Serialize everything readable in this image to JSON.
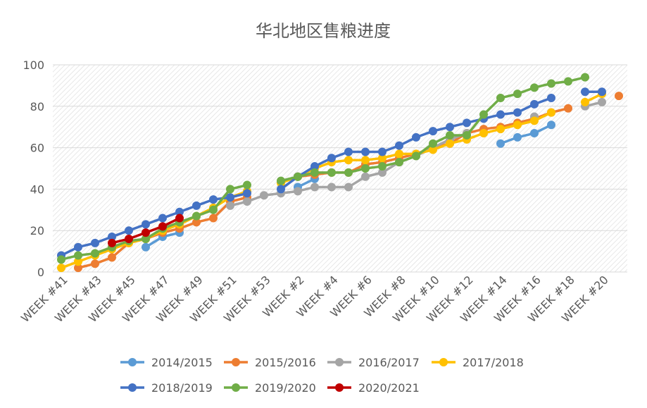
{
  "chart_data": {
    "type": "line",
    "title": "华北地区售粮进度",
    "xlabel": "",
    "ylabel": "",
    "ylim": [
      0,
      100
    ],
    "yticks": [
      0,
      20,
      40,
      60,
      80,
      100
    ],
    "grid": true,
    "background": "hatched",
    "legend_position": "bottom",
    "categories": [
      "WEEK #41",
      "WEEK #42",
      "WEEK #43",
      "WEEK #44",
      "WEEK #45",
      "WEEK #46",
      "WEEK #47",
      "WEEK #48",
      "WEEK #49",
      "WEEK #50",
      "WEEK #51",
      "WEEK #52",
      "WEEK #53",
      "WEEK #1",
      "WEEK #2",
      "WEEK #3",
      "WEEK #4",
      "WEEK #5",
      "WEEK #6",
      "WEEK #7",
      "WEEK #8",
      "WEEK #9",
      "WEEK #10",
      "WEEK #11",
      "WEEK #12",
      "WEEK #13",
      "WEEK #14",
      "WEEK #15",
      "WEEK #16",
      "WEEK #17",
      "WEEK #18",
      "WEEK #19",
      "WEEK #20",
      "WEEK #21"
    ],
    "tick_labels": [
      "WEEK #41",
      "WEEK #43",
      "WEEK #45",
      "WEEK #47",
      "WEEK #49",
      "WEEK #51",
      "WEEK #53",
      "WEEK #2",
      "WEEK #4",
      "WEEK #6",
      "WEEK #8",
      "WEEK #10",
      "WEEK #12",
      "WEEK #14",
      "WEEK #16",
      "WEEK #18",
      "WEEK #20"
    ],
    "series": [
      {
        "name": "2014/2015",
        "color": "#5B9BD5",
        "values": [
          null,
          null,
          null,
          null,
          null,
          12,
          17,
          19,
          null,
          null,
          null,
          null,
          null,
          null,
          41,
          45,
          null,
          null,
          null,
          null,
          null,
          null,
          null,
          null,
          null,
          null,
          62,
          65,
          67,
          71,
          null,
          null,
          null,
          null
        ]
      },
      {
        "name": "2015/2016",
        "color": "#ED7D31",
        "values": [
          null,
          2,
          4,
          7,
          14,
          16,
          19,
          21,
          24,
          26,
          34,
          36,
          null,
          null,
          46,
          47,
          48,
          48,
          52,
          53,
          55,
          57,
          60,
          62,
          67,
          69,
          70,
          72,
          74,
          77,
          79,
          null,
          null,
          85
        ]
      },
      {
        "name": "2016/2017",
        "color": "#A5A5A5",
        "values": [
          null,
          null,
          null,
          null,
          null,
          null,
          null,
          null,
          null,
          null,
          32,
          34,
          37,
          38,
          39,
          41,
          41,
          41,
          46,
          48,
          53,
          56,
          60,
          64,
          67,
          null,
          null,
          null,
          75,
          null,
          null,
          80,
          82,
          null
        ]
      },
      {
        "name": "2017/2018",
        "color": "#FFC000",
        "values": [
          2,
          5,
          8,
          11,
          14,
          16,
          20,
          23,
          27,
          31,
          36,
          39,
          null,
          43,
          46,
          50,
          53,
          54,
          54,
          55,
          57,
          57,
          59,
          62,
          64,
          67,
          69,
          71,
          73,
          77,
          null,
          82,
          86,
          null
        ]
      },
      {
        "name": "2018/2019",
        "color": "#4472C4",
        "values": [
          8,
          12,
          14,
          17,
          20,
          23,
          26,
          29,
          32,
          35,
          36,
          38,
          null,
          40,
          46,
          51,
          55,
          58,
          58,
          58,
          61,
          65,
          68,
          70,
          72,
          74,
          76,
          77,
          81,
          84,
          null,
          87,
          87,
          null
        ]
      },
      {
        "name": "2019/2020",
        "color": "#70AD47",
        "values": [
          6,
          8,
          9,
          12,
          15,
          16,
          21,
          24,
          27,
          30,
          40,
          42,
          null,
          44,
          46,
          48,
          48,
          48,
          50,
          51,
          53,
          56,
          62,
          66,
          66,
          76,
          84,
          86,
          89,
          91,
          92,
          94,
          null,
          null
        ]
      },
      {
        "name": "2020/2021",
        "color": "#C00000",
        "values": [
          null,
          null,
          null,
          14,
          16,
          19,
          22,
          26,
          null,
          null,
          null,
          null,
          null,
          null,
          null,
          null,
          null,
          null,
          null,
          null,
          null,
          null,
          null,
          null,
          null,
          null,
          null,
          null,
          null,
          null,
          null,
          null,
          null,
          null
        ]
      }
    ]
  }
}
